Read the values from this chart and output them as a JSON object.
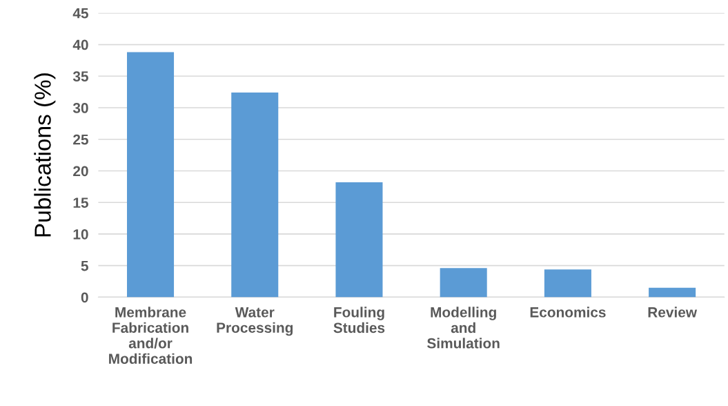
{
  "chart_data": {
    "type": "bar",
    "ylabel": "Publications (%)",
    "categories": [
      "Membrane\nFabrication\nand/or\nModification",
      "Water\nProcessing",
      "Fouling\nStudies",
      "Modelling\nand\nSimulation",
      "Economics",
      "Review"
    ],
    "values": [
      38.8,
      32.4,
      18.2,
      4.6,
      4.4,
      1.5
    ],
    "color": "#5b9bd5",
    "ylim": [
      0,
      45
    ],
    "yticks": [
      0,
      5,
      10,
      15,
      20,
      25,
      30,
      35,
      40,
      45
    ],
    "grid": "y"
  }
}
